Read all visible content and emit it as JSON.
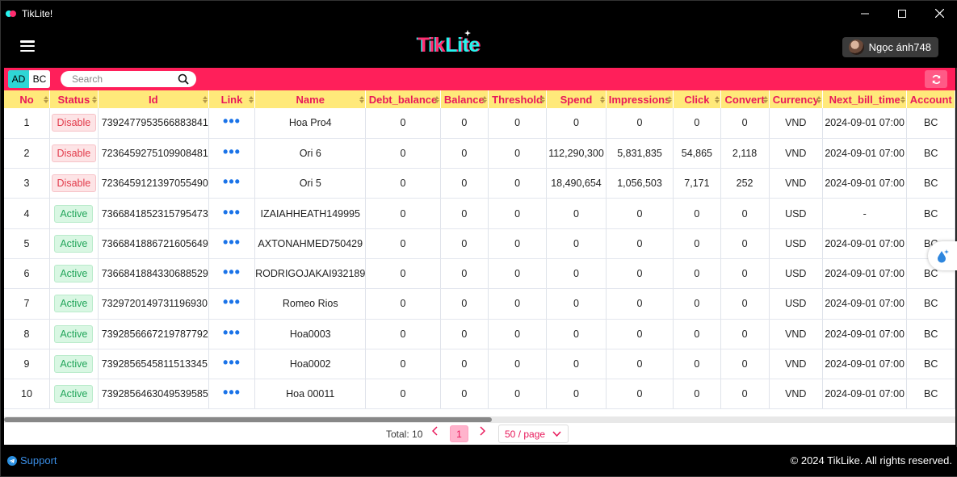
{
  "window": {
    "title": "TikLite!"
  },
  "header": {
    "logo_tik": "Tik",
    "logo_lite": "Lite",
    "user_name": "Ngọc ánh748"
  },
  "toolbar": {
    "toggle": [
      "AD",
      "BC"
    ],
    "search_placeholder": "Search"
  },
  "table": {
    "columns": [
      "No",
      "Status",
      "Id",
      "Link",
      "Name",
      "Debt_balance",
      "Balance",
      "Threshold",
      "Spend",
      "Impressions",
      "Click",
      "Convert",
      "Currency",
      "Next_bill_time",
      "Account"
    ],
    "rows": [
      [
        "1",
        "Disable",
        "7392477953566883841",
        "•••",
        "Hoa Pro4",
        "0",
        "0",
        "0",
        "0",
        "0",
        "0",
        "0",
        "VND",
        "2024-09-01 07:00",
        "BC"
      ],
      [
        "2",
        "Disable",
        "7236459275109908481",
        "•••",
        "Ori 6",
        "0",
        "0",
        "0",
        "112,290,300",
        "5,831,835",
        "54,865",
        "2,118",
        "VND",
        "2024-09-01 07:00",
        "BC"
      ],
      [
        "3",
        "Disable",
        "7236459121397055490",
        "•••",
        "Ori 5",
        "0",
        "0",
        "0",
        "18,490,654",
        "1,056,503",
        "7,171",
        "252",
        "VND",
        "2024-09-01 07:00",
        "BC"
      ],
      [
        "4",
        "Active",
        "7366841852315795473",
        "•••",
        "IZAIAHHEATH149995",
        "0",
        "0",
        "0",
        "0",
        "0",
        "0",
        "0",
        "USD",
        "-",
        "BC"
      ],
      [
        "5",
        "Active",
        "7366841886721605649",
        "•••",
        "AXTONAHMED750429",
        "0",
        "0",
        "0",
        "0",
        "0",
        "0",
        "0",
        "USD",
        "2024-09-01 07:00",
        "BC"
      ],
      [
        "6",
        "Active",
        "7366841884330688529",
        "•••",
        "RODRIGOJAKAI932189",
        "0",
        "0",
        "0",
        "0",
        "0",
        "0",
        "0",
        "USD",
        "2024-09-01 07:00",
        "BC"
      ],
      [
        "7",
        "Active",
        "7329720149731196930",
        "•••",
        "Romeo Rios",
        "0",
        "0",
        "0",
        "0",
        "0",
        "0",
        "0",
        "USD",
        "2024-09-01 07:00",
        "BC"
      ],
      [
        "8",
        "Active",
        "7392856667219787792",
        "•••",
        "Hoa0003",
        "0",
        "0",
        "0",
        "0",
        "0",
        "0",
        "0",
        "VND",
        "2024-09-01 07:00",
        "BC"
      ],
      [
        "9",
        "Active",
        "7392856545811513345",
        "•••",
        "Hoa0002",
        "0",
        "0",
        "0",
        "0",
        "0",
        "0",
        "0",
        "VND",
        "2024-09-01 07:00",
        "BC"
      ],
      [
        "10",
        "Active",
        "7392856463049539585",
        "•••",
        "Hoa 00011",
        "0",
        "0",
        "0",
        "0",
        "0",
        "0",
        "0",
        "VND",
        "2024-09-01 07:00",
        "BC"
      ]
    ]
  },
  "pagination": {
    "total": "Total: 10",
    "current_page": "1",
    "page_size": "50 / page"
  },
  "footer": {
    "support": "Support",
    "copyright": "© 2024 TikLike. All rights reserved."
  },
  "colors": {
    "accent": "#ff1f5a",
    "header_bg": "#ffe97a",
    "header_text": "#e8185a",
    "active_status": "#22a55a",
    "disabled_status": "#e23a4a"
  },
  "icons": {
    "menu": "hamburger-icon",
    "search": "search-icon",
    "refresh": "refresh-icon",
    "link": "ellipsis-icon",
    "support": "telegram-icon"
  }
}
